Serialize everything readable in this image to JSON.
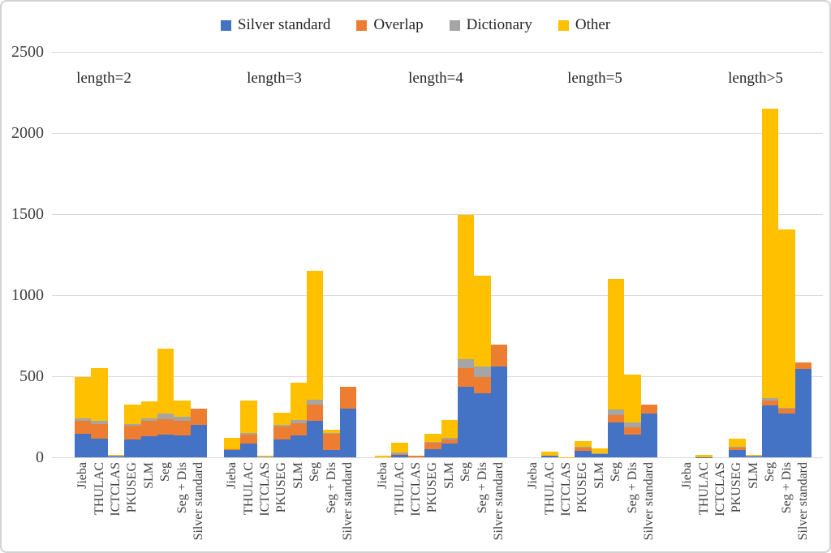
{
  "chart_data": {
    "type": "bar",
    "stacked": true,
    "title": "",
    "xlabel": "",
    "ylabel": "",
    "ylim": [
      0,
      2500
    ],
    "yticks": [
      0,
      500,
      1000,
      1500,
      2000,
      2500
    ],
    "grid": true,
    "legend_position": "top-center",
    "series_names": [
      "Silver standard",
      "Overlap",
      "Dictionary",
      "Other"
    ],
    "legend": [
      {
        "label": "Silver standard",
        "color": "#4472C4"
      },
      {
        "label": "Overlap",
        "color": "#ED7D31"
      },
      {
        "label": "Dictionary",
        "color": "#A5A5A5"
      },
      {
        "label": "Other",
        "color": "#FFC000"
      }
    ],
    "categories": [
      "Jieba",
      "THULAC",
      "ICTCLAS",
      "PKUSEG",
      "SLM",
      "Seg",
      "Seg + Dis",
      "Silver standard"
    ],
    "groups": [
      {
        "label": "length=2",
        "bars": [
          {
            "category": "Jieba",
            "values": [
              145,
              80,
              15,
              255
            ]
          },
          {
            "category": "THULAC",
            "values": [
              115,
              90,
              20,
              325
            ]
          },
          {
            "category": "ICTCLAS",
            "values": [
              6,
              3,
              3,
              3
            ]
          },
          {
            "category": "PKUSEG",
            "values": [
              110,
              85,
              10,
              120
            ]
          },
          {
            "category": "SLM",
            "values": [
              130,
              95,
              15,
              105
            ]
          },
          {
            "category": "Seg",
            "values": [
              140,
              95,
              35,
              400
            ]
          },
          {
            "category": "Seg + Dis",
            "values": [
              135,
              90,
              25,
              100
            ]
          },
          {
            "category": "Silver standard",
            "values": [
              200,
              100,
              0,
              0
            ]
          }
        ]
      },
      {
        "label": "length=3",
        "bars": [
          {
            "category": "Jieba",
            "values": [
              45,
              5,
              0,
              70
            ]
          },
          {
            "category": "THULAC",
            "values": [
              85,
              55,
              10,
              200
            ]
          },
          {
            "category": "ICTCLAS",
            "values": [
              3,
              2,
              1,
              2
            ]
          },
          {
            "category": "PKUSEG",
            "values": [
              110,
              80,
              10,
              75
            ]
          },
          {
            "category": "SLM",
            "values": [
              135,
              75,
              20,
              230
            ]
          },
          {
            "category": "Seg",
            "values": [
              225,
              100,
              30,
              795
            ]
          },
          {
            "category": "Seg + Dis",
            "values": [
              45,
              100,
              5,
              20
            ]
          },
          {
            "category": "Silver standard",
            "values": [
              300,
              135,
              0,
              0
            ]
          }
        ]
      },
      {
        "label": "length=4",
        "bars": [
          {
            "category": "Jieba",
            "values": [
              0,
              0,
              0,
              8
            ]
          },
          {
            "category": "THULAC",
            "values": [
              15,
              5,
              10,
              60
            ]
          },
          {
            "category": "ICTCLAS",
            "values": [
              0,
              8,
              0,
              0
            ]
          },
          {
            "category": "PKUSEG",
            "values": [
              50,
              40,
              5,
              50
            ]
          },
          {
            "category": "SLM",
            "values": [
              85,
              25,
              10,
              110
            ]
          },
          {
            "category": "Seg",
            "values": [
              435,
              115,
              55,
              890
            ]
          },
          {
            "category": "Seg + Dis",
            "values": [
              395,
              100,
              65,
              560
            ]
          },
          {
            "category": "Silver standard",
            "values": [
              560,
              135,
              0,
              0
            ]
          }
        ]
      },
      {
        "label": "length=5",
        "bars": [
          {
            "category": "Jieba",
            "values": [
              0,
              0,
              0,
              0
            ]
          },
          {
            "category": "THULAC",
            "values": [
              10,
              0,
              0,
              25
            ]
          },
          {
            "category": "ICTCLAS",
            "values": [
              0,
              0,
              0,
              2
            ]
          },
          {
            "category": "PKUSEG",
            "values": [
              40,
              20,
              5,
              35
            ]
          },
          {
            "category": "SLM",
            "values": [
              20,
              0,
              5,
              30
            ]
          },
          {
            "category": "Seg",
            "values": [
              215,
              45,
              35,
              805
            ]
          },
          {
            "category": "Seg + Dis",
            "values": [
              140,
              45,
              30,
              295
            ]
          },
          {
            "category": "Silver standard",
            "values": [
              270,
              55,
              0,
              0
            ]
          }
        ]
      },
      {
        "label": "length>5",
        "bars": [
          {
            "category": "Jieba",
            "values": [
              0,
              0,
              0,
              0
            ]
          },
          {
            "category": "THULAC",
            "values": [
              2,
              0,
              0,
              13
            ]
          },
          {
            "category": "ICTCLAS",
            "values": [
              0,
              0,
              0,
              0
            ]
          },
          {
            "category": "PKUSEG",
            "values": [
              45,
              15,
              5,
              50
            ]
          },
          {
            "category": "SLM",
            "values": [
              5,
              0,
              5,
              5
            ]
          },
          {
            "category": "Seg",
            "values": [
              320,
              30,
              15,
              1785
            ]
          },
          {
            "category": "Seg + Dis",
            "values": [
              270,
              30,
              5,
              1100
            ]
          },
          {
            "category": "Silver standard",
            "values": [
              545,
              40,
              0,
              0
            ]
          }
        ]
      }
    ]
  }
}
